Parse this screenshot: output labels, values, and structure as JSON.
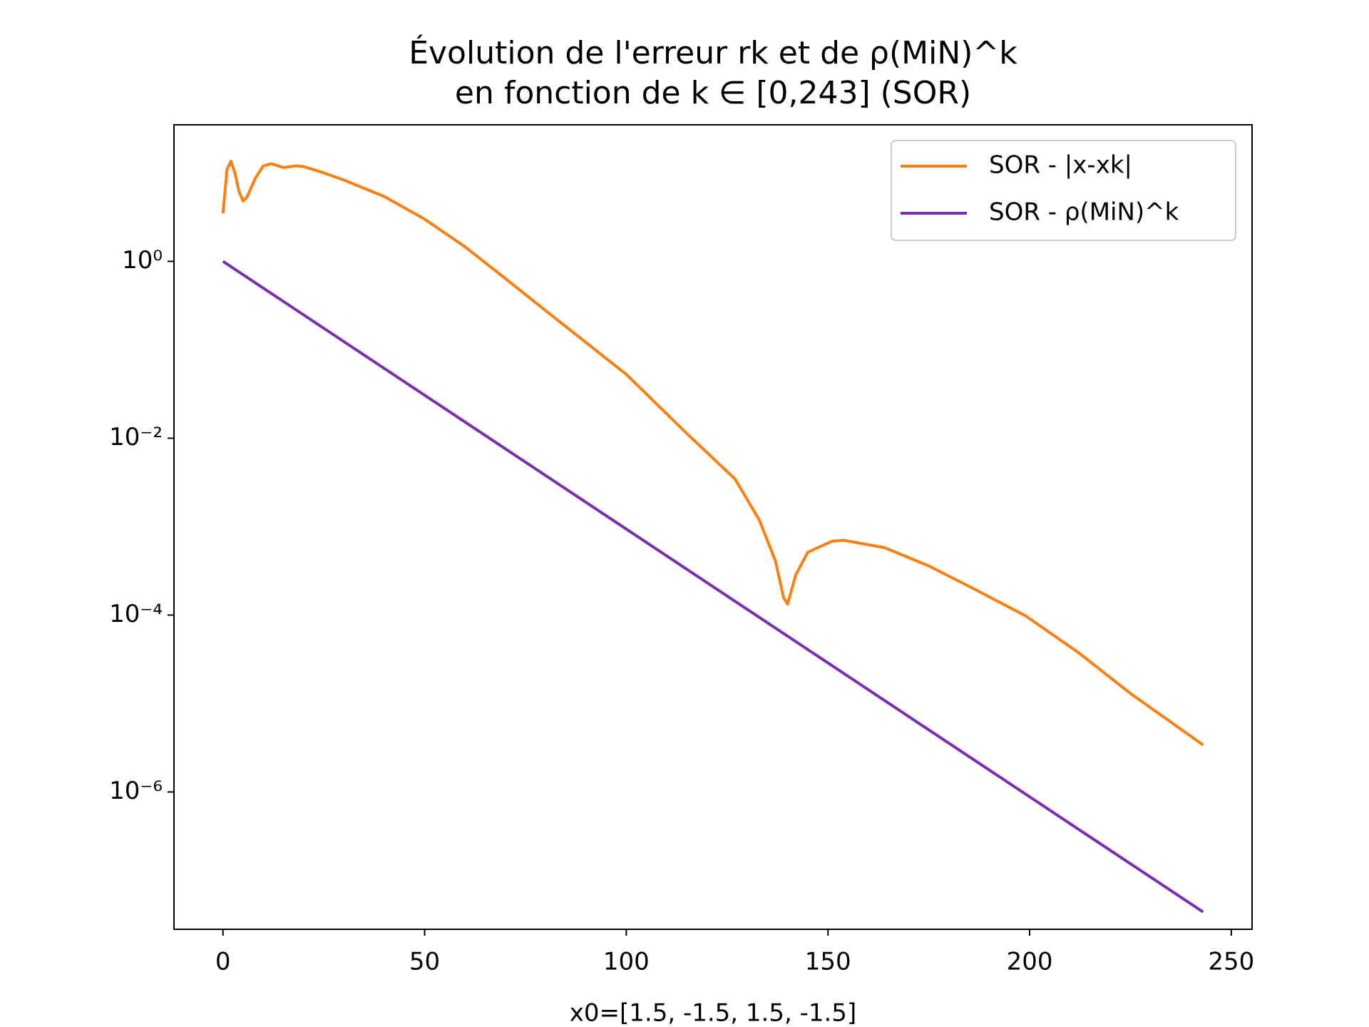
{
  "chart_data": {
    "type": "line",
    "title": [
      "Évolution de l'erreur rk et de ρ(MiN)^k",
      "en fonction de k ∈ [0,243] (SOR)"
    ],
    "xlabel": "x0=[1.5, -1.5, 1.5, -1.5]",
    "log_y": true,
    "grid": false,
    "legend": "upper right",
    "xlim": [
      -12.15,
      255.15
    ],
    "xticks": [
      0,
      50,
      100,
      150,
      200,
      250
    ],
    "ylim": [
      2.8e-08,
      35
    ],
    "yticks": [
      {
        "value": 1,
        "label": "10⁰"
      },
      {
        "value": 0.01,
        "label": "10⁻²"
      },
      {
        "value": 0.0001,
        "label": "10⁻⁴"
      },
      {
        "value": 1e-06,
        "label": "10⁻⁶"
      }
    ],
    "series": [
      {
        "name": "SOR - |x-xk|",
        "color": "#ff7f0e",
        "x": [
          0,
          1,
          2,
          3,
          4,
          5,
          6,
          8,
          10,
          12,
          15,
          18,
          20,
          25,
          30,
          40,
          50,
          60,
          70,
          80,
          100,
          115,
          127,
          133,
          137,
          139,
          140,
          142,
          145,
          151,
          154,
          164,
          175,
          186,
          199,
          212,
          225,
          243
        ],
        "values": [
          3.5,
          11,
          13.6,
          9.8,
          6.1,
          4.8,
          5.4,
          8.7,
          12,
          12.7,
          11.5,
          12,
          11.8,
          10,
          8.3,
          5.4,
          3.0,
          1.46,
          0.64,
          0.277,
          0.0527,
          0.0113,
          0.00344,
          0.00118,
          0.000406,
          0.000157,
          0.000133,
          0.000284,
          0.000514,
          0.000684,
          0.0007,
          0.000579,
          0.00036,
          0.0002,
          9.8e-05,
          3.8e-05,
          1.3e-05,
          3.4e-06
        ]
      },
      {
        "name": "SOR - ρ(MiN)^k",
        "color": "#7b2fb0",
        "x": [
          0,
          243
        ],
        "values": [
          1,
          4.4e-08
        ]
      }
    ]
  }
}
